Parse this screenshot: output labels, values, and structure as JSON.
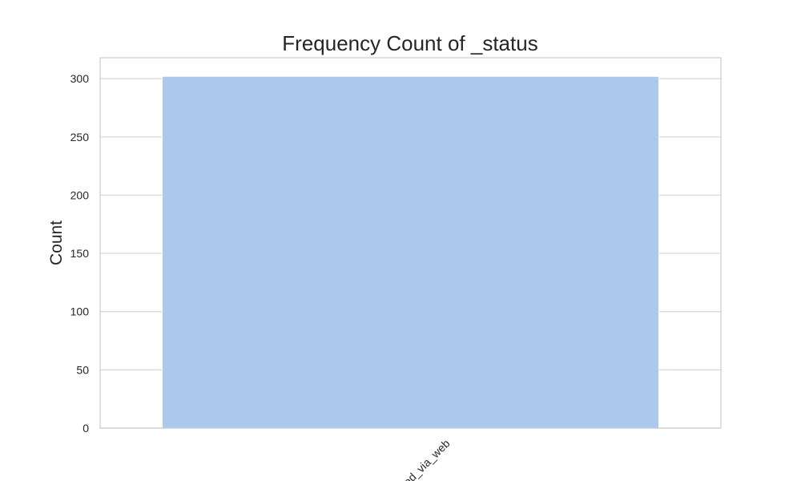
{
  "chart_data": {
    "type": "bar",
    "title": "Frequency Count of _status",
    "xlabel": "",
    "ylabel": "Count",
    "categories": [
      "posted_via_web"
    ],
    "values": [
      302
    ],
    "ylim": [
      0,
      318
    ],
    "yticks": [
      0,
      50,
      100,
      150,
      200,
      250,
      300
    ],
    "grid": true,
    "colors": {
      "bar": "#abc9ec",
      "grid": "#d5d5d5",
      "frame": "#cccccc",
      "text": "#262626"
    }
  }
}
